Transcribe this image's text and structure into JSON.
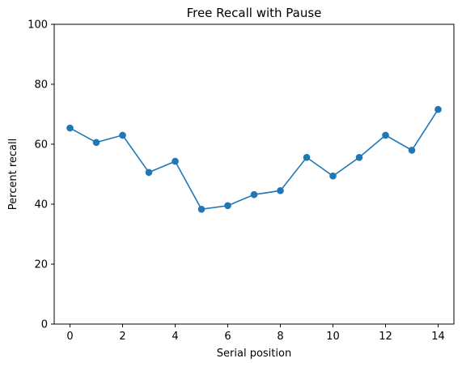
{
  "chart_data": {
    "type": "line",
    "title": "Free Recall with Pause",
    "xlabel": "Serial position",
    "ylabel": "Percent recall",
    "xlim": [
      -0.6,
      14.6
    ],
    "ylim": [
      0,
      100
    ],
    "x_ticks": [
      0,
      2,
      4,
      6,
      8,
      10,
      12,
      14
    ],
    "y_ticks": [
      0,
      20,
      40,
      60,
      80,
      100
    ],
    "grid": false,
    "series": [
      {
        "color": "#1f77b4",
        "marker": "circle",
        "x": [
          0,
          1,
          2,
          3,
          4,
          5,
          6,
          7,
          8,
          9,
          10,
          11,
          12,
          13,
          14
        ],
        "y": [
          65.4,
          60.6,
          63.0,
          50.6,
          54.3,
          38.3,
          39.5,
          43.2,
          44.5,
          55.6,
          49.4,
          55.6,
          63.0,
          58.0,
          71.6
        ]
      }
    ]
  }
}
